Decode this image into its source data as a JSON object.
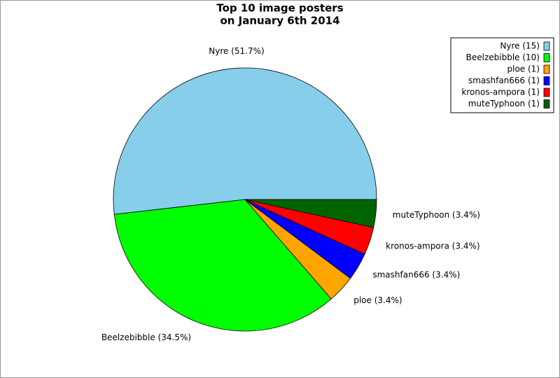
{
  "chart_data": {
    "type": "pie",
    "title": [
      "Top 10 image posters",
      "on January 6th 2014"
    ],
    "categories": [
      "Nyre",
      "Beelzebibble",
      "ploe",
      "smashfan666",
      "kronos-ampora",
      "muteTyphoon"
    ],
    "values": [
      51.7,
      34.5,
      3.4,
      3.4,
      3.4,
      3.4
    ],
    "value_labels": [
      "Nyre (51.7%)",
      "Beelzebibble (34.5%)",
      "ploe (3.4%)",
      "smashfan666 (3.4%)",
      "kronos-ampora (3.4%)",
      "muteTyphoon (3.4%)"
    ],
    "legend_labels": [
      "Nyre (15)",
      "Beelzebibble (10)",
      "ploe (1)",
      "smashfan666 (1)",
      "kronos-ampora (1)",
      "muteTyphoon (1)"
    ],
    "colors": [
      "#87ceeb",
      "#00ff00",
      "#ffa500",
      "#0000ff",
      "#ff0000",
      "#006400"
    ],
    "legend_position": "top-right"
  }
}
